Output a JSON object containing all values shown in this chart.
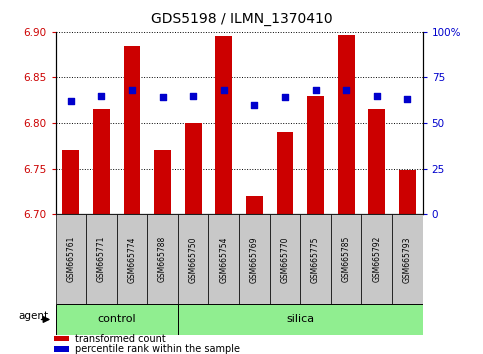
{
  "title": "GDS5198 / ILMN_1370410",
  "samples": [
    "GSM665761",
    "GSM665771",
    "GSM665774",
    "GSM665788",
    "GSM665750",
    "GSM665754",
    "GSM665769",
    "GSM665770",
    "GSM665775",
    "GSM665785",
    "GSM665792",
    "GSM665793"
  ],
  "transformed_count": [
    6.77,
    6.815,
    6.885,
    6.77,
    6.8,
    6.895,
    6.72,
    6.79,
    6.83,
    6.897,
    6.815,
    6.748
  ],
  "percentile_rank": [
    62,
    65,
    68,
    64,
    65,
    68,
    60,
    64,
    68,
    68,
    65,
    63
  ],
  "control_count": 4,
  "groups": [
    {
      "label": "control",
      "color": "#90EE90"
    },
    {
      "label": "silica",
      "color": "#90EE90"
    }
  ],
  "ylim_left": [
    6.7,
    6.9
  ],
  "ylim_right": [
    0,
    100
  ],
  "yticks_left": [
    6.7,
    6.75,
    6.8,
    6.85,
    6.9
  ],
  "yticks_right": [
    0,
    25,
    50,
    75,
    100
  ],
  "bar_color": "#CC0000",
  "marker_color": "#0000CC",
  "bar_width": 0.55,
  "left_label_color": "#CC0000",
  "right_label_color": "#0000CC",
  "grid_color": "#000000",
  "agent_label": "agent",
  "legend_items": [
    {
      "color": "#CC0000",
      "label": "transformed count"
    },
    {
      "color": "#0000CC",
      "label": "percentile rank within the sample"
    }
  ],
  "sample_box_color": "#C8C8C8",
  "title_fontsize": 10,
  "tick_fontsize": 7.5,
  "group_fontsize": 8,
  "legend_fontsize": 7,
  "sample_fontsize": 5.5
}
